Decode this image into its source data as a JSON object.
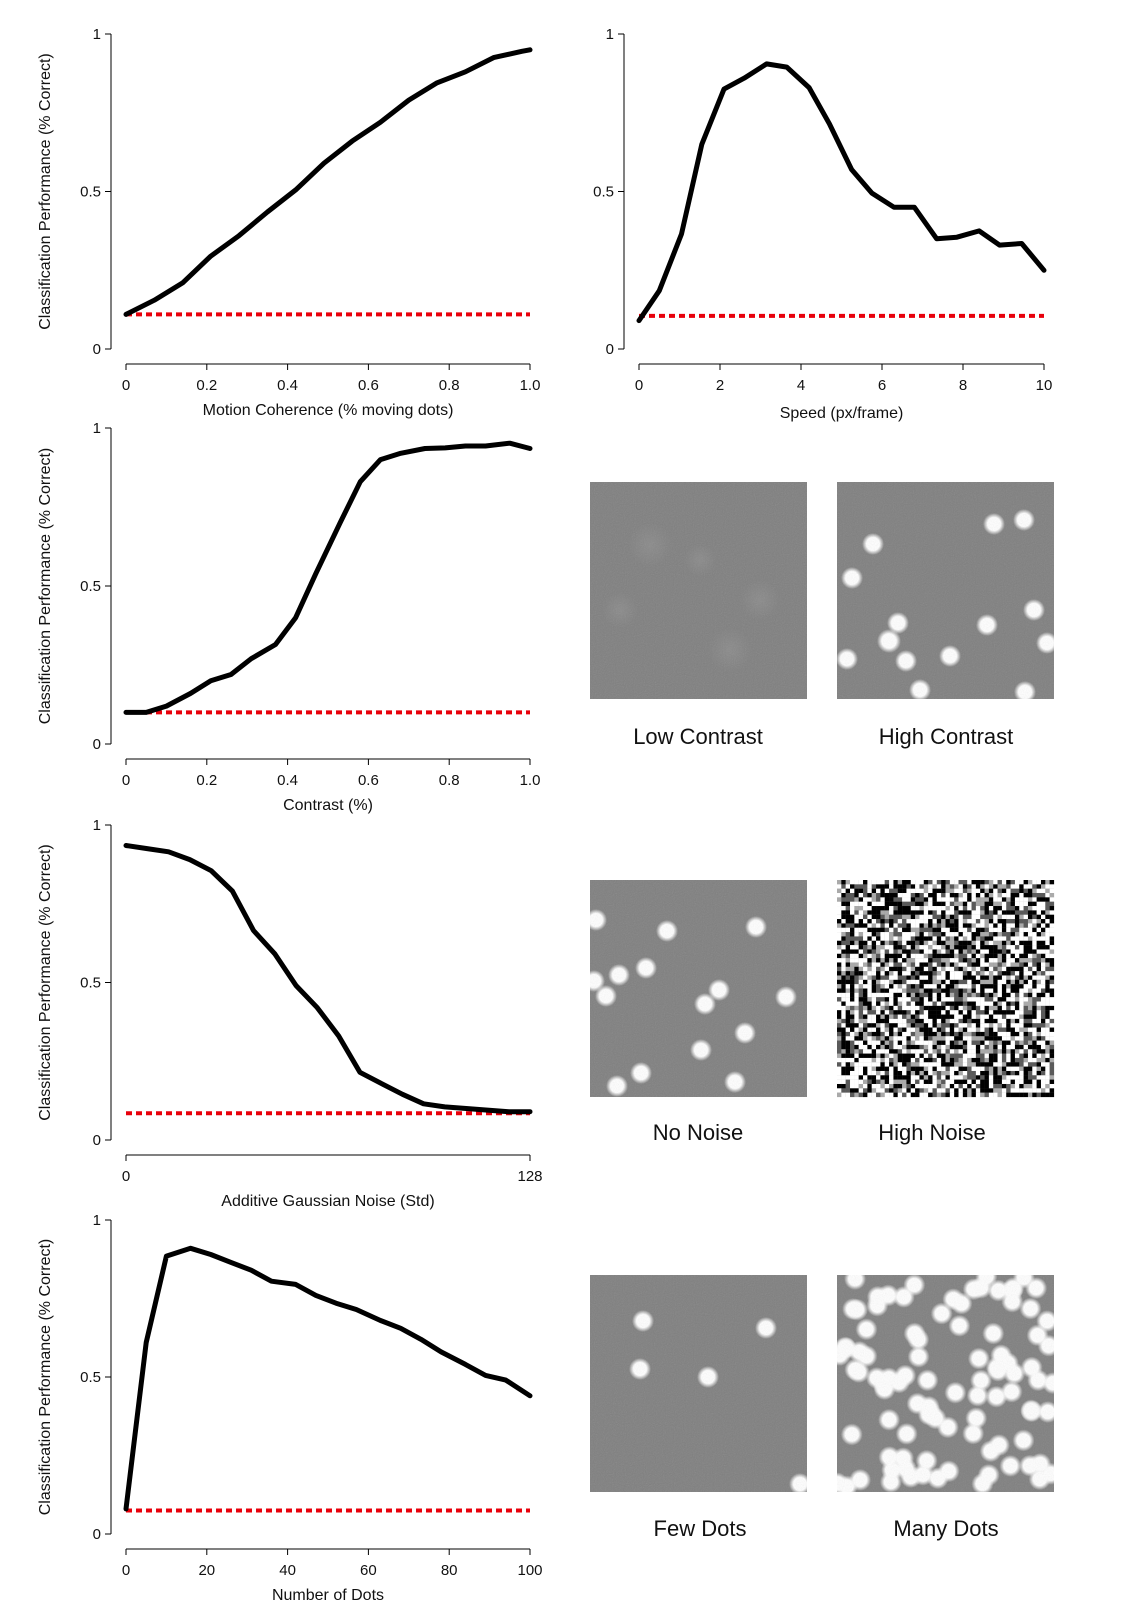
{
  "colors": {
    "curve": "#000000",
    "chance": "#e8000b",
    "axis": "#000000",
    "thumb_bg": "#7f7f7f",
    "dot": "#ffffff"
  },
  "chart_data": [
    {
      "type": "line",
      "xlabel": "Motion Coherence (% moving dots)",
      "ylabel": "Classification Performance (% Correct)",
      "xlim": [
        0,
        1.0
      ],
      "ylim": [
        0,
        1
      ],
      "xticks": [
        "0",
        "0.2",
        "0.4",
        "0.6",
        "0.8",
        "1.0"
      ],
      "xtick_values": [
        0,
        0.2,
        0.4,
        0.6,
        0.8,
        1.0
      ],
      "yticks": [
        "0",
        "0.5",
        "1"
      ],
      "ytick_values": [
        0,
        0.5,
        1
      ],
      "series": [
        {
          "x": [
            0,
            0.07,
            0.14,
            0.21,
            0.28,
            0.35,
            0.42,
            0.49,
            0.56,
            0.63,
            0.7,
            0.77,
            0.84,
            0.91,
            0.98,
            1.0
          ],
          "y": [
            0.11,
            0.155,
            0.21,
            0.295,
            0.36,
            0.435,
            0.505,
            0.59,
            0.66,
            0.72,
            0.79,
            0.845,
            0.88,
            0.925,
            0.945,
            0.95
          ]
        }
      ],
      "chance_level": 0.11
    },
    {
      "type": "line",
      "xlabel": "Speed (px/frame)",
      "ylabel": "",
      "xlim": [
        0,
        10
      ],
      "ylim": [
        0,
        1
      ],
      "xticks": [
        "0",
        "2",
        "4",
        "6",
        "8",
        "10"
      ],
      "xtick_values": [
        0,
        2,
        4,
        6,
        8,
        10
      ],
      "yticks": [
        "0",
        "0.5",
        "1"
      ],
      "ytick_values": [
        0,
        0.5,
        1
      ],
      "series": [
        {
          "x": [
            0,
            0.5,
            1.05,
            1.55,
            2.1,
            2.6,
            3.15,
            3.65,
            4.2,
            4.7,
            5.25,
            5.75,
            6.3,
            6.8,
            7.35,
            7.85,
            8.4,
            8.9,
            9.45,
            10
          ],
          "y": [
            0.09,
            0.185,
            0.365,
            0.65,
            0.825,
            0.86,
            0.905,
            0.895,
            0.83,
            0.715,
            0.57,
            0.495,
            0.45,
            0.45,
            0.35,
            0.355,
            0.375,
            0.33,
            0.335,
            0.25
          ]
        }
      ],
      "chance_level": 0.105
    },
    {
      "type": "line",
      "xlabel": "Contrast (%)",
      "ylabel": "Classification Performance (% Correct)",
      "xlim": [
        0,
        1.0
      ],
      "ylim": [
        0,
        1
      ],
      "xticks": [
        "0",
        "0.2",
        "0.4",
        "0.6",
        "0.8",
        "1.0"
      ],
      "xtick_values": [
        0,
        0.2,
        0.4,
        0.6,
        0.8,
        1.0
      ],
      "yticks": [
        "0",
        "0.5",
        "1"
      ],
      "ytick_values": [
        0,
        0.5,
        1
      ],
      "series": [
        {
          "x": [
            0,
            0.05,
            0.1,
            0.16,
            0.21,
            0.26,
            0.31,
            0.37,
            0.42,
            0.47,
            0.53,
            0.58,
            0.63,
            0.68,
            0.74,
            0.79,
            0.84,
            0.89,
            0.95,
            1.0
          ],
          "y": [
            0.1,
            0.1,
            0.12,
            0.16,
            0.2,
            0.22,
            0.27,
            0.315,
            0.4,
            0.54,
            0.7,
            0.83,
            0.9,
            0.92,
            0.935,
            0.937,
            0.943,
            0.943,
            0.952,
            0.935
          ]
        }
      ],
      "chance_level": 0.1
    },
    {
      "type": "line",
      "xlabel": "Additive Gaussian Noise (Std)",
      "ylabel": "Classification Performance (% Correct)",
      "xlim": [
        0,
        128
      ],
      "ylim": [
        0,
        1
      ],
      "xticks": [
        "0",
        "128"
      ],
      "xtick_values": [
        0,
        128
      ],
      "yticks": [
        "0",
        "0.5",
        "1"
      ],
      "ytick_values": [
        0,
        0.5,
        1
      ],
      "series": [
        {
          "x": [
            0,
            6.7,
            13.5,
            20.2,
            27,
            33.7,
            40.4,
            47.2,
            53.9,
            60.6,
            67.4,
            74.1,
            80.8,
            87.6,
            94.3,
            101,
            107.8,
            114.5,
            121.3,
            128
          ],
          "y": [
            0.935,
            0.925,
            0.915,
            0.89,
            0.855,
            0.79,
            0.665,
            0.59,
            0.49,
            0.42,
            0.33,
            0.215,
            0.18,
            0.145,
            0.115,
            0.105,
            0.1,
            0.095,
            0.09,
            0.09
          ]
        }
      ],
      "chance_level": 0.085
    },
    {
      "type": "line",
      "xlabel": "Number of Dots",
      "ylabel": "Classification Performance (% Correct)",
      "xlim": [
        0,
        100
      ],
      "ylim": [
        0,
        1
      ],
      "xticks": [
        "0",
        "20",
        "40",
        "60",
        "80",
        "100"
      ],
      "xtick_values": [
        0,
        20,
        40,
        60,
        80,
        100
      ],
      "yticks": [
        "0",
        "0.5",
        "1"
      ],
      "ytick_values": [
        0,
        0.5,
        1
      ],
      "series": [
        {
          "x": [
            0,
            5,
            10,
            16,
            21,
            26,
            31,
            36,
            42,
            47,
            52,
            57,
            63,
            68,
            73,
            78,
            84,
            89,
            94,
            100
          ],
          "y": [
            0.08,
            0.61,
            0.885,
            0.91,
            0.89,
            0.865,
            0.84,
            0.805,
            0.795,
            0.76,
            0.735,
            0.715,
            0.68,
            0.655,
            0.62,
            0.58,
            0.54,
            0.505,
            0.49,
            0.44
          ]
        }
      ],
      "chance_level": 0.075
    }
  ],
  "thumbnails": [
    {
      "caption": "Low Contrast"
    },
    {
      "caption": "High Contrast"
    },
    {
      "caption": "No Noise"
    },
    {
      "caption": "High Noise"
    },
    {
      "caption": "Few Dots"
    },
    {
      "caption": "Many Dots"
    }
  ]
}
